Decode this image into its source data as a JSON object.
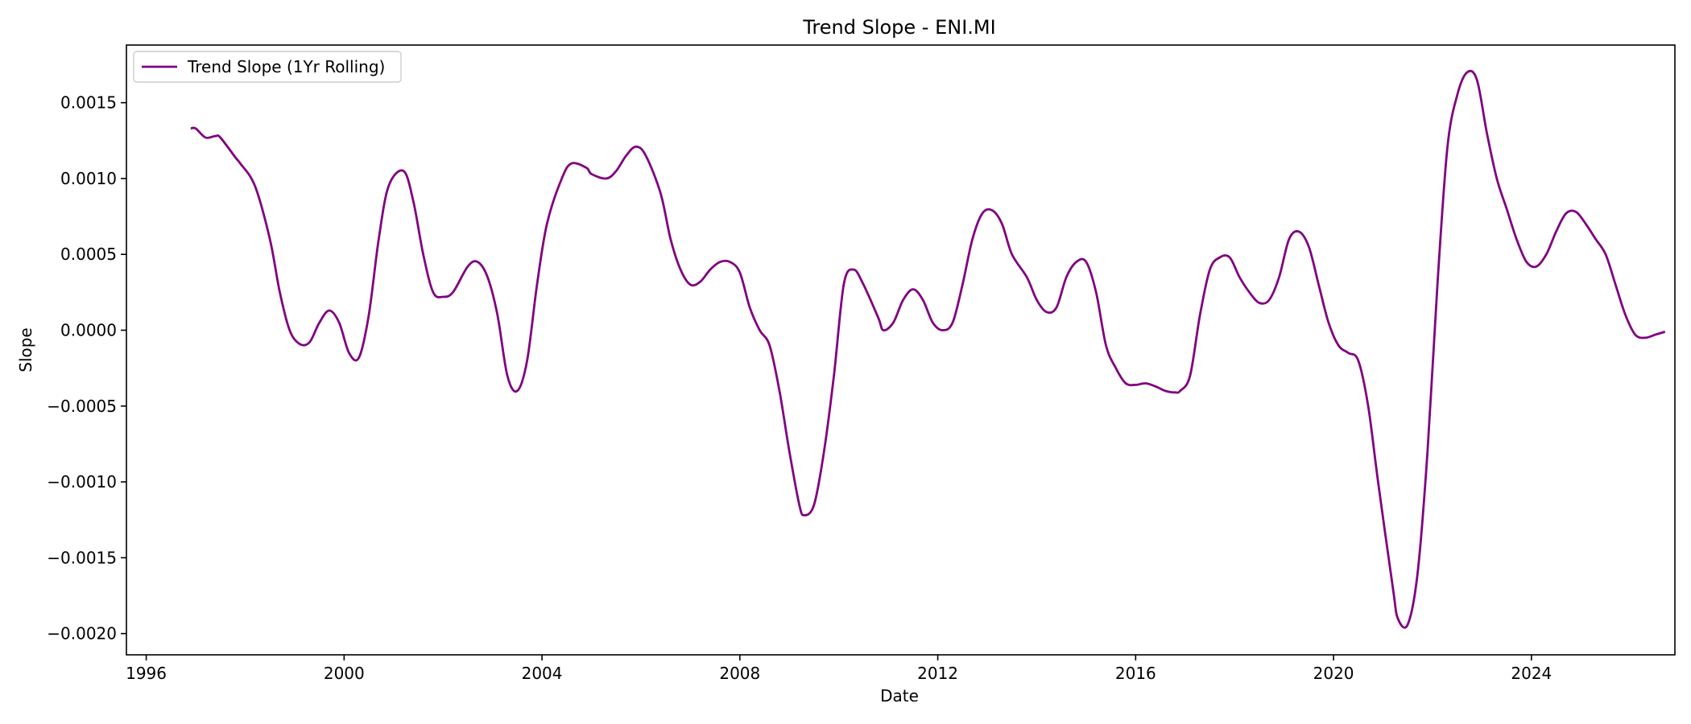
{
  "chart_data": {
    "type": "line",
    "title": "Trend Slope - ENI.MI",
    "xlabel": "Date",
    "ylabel": "Slope",
    "xlim": [
      1995.6,
      2026.9
    ],
    "ylim": [
      -0.00214,
      0.00188
    ],
    "x_ticks": [
      1996,
      2000,
      2004,
      2008,
      2012,
      2016,
      2020,
      2024
    ],
    "x_tick_labels": [
      "1996",
      "2000",
      "2004",
      "2008",
      "2012",
      "2016",
      "2020",
      "2024"
    ],
    "y_ticks": [
      0.0015,
      0.001,
      0.0005,
      0.0,
      -0.0005,
      -0.001,
      -0.0015,
      -0.002
    ],
    "y_tick_labels": [
      "0.0015",
      "0.0010",
      "0.0005",
      "0.0000",
      "−0.0005",
      "−0.0010",
      "−0.0015",
      "−0.0020"
    ],
    "grid": false,
    "legend": {
      "location": "upper left",
      "entries": [
        "Trend Slope (1Yr Rolling)"
      ]
    },
    "series": [
      {
        "name": "Trend Slope (1Yr Rolling)",
        "color": "#800080",
        "points": [
          [
            1996.9,
            0.00133
          ],
          [
            1997.0,
            0.00133
          ],
          [
            1997.2,
            0.00127
          ],
          [
            1997.4,
            0.00128
          ],
          [
            1997.5,
            0.00127
          ],
          [
            1997.8,
            0.00114
          ],
          [
            1997.9,
            0.0011
          ],
          [
            1998.2,
            0.00095
          ],
          [
            1998.5,
            0.0006
          ],
          [
            1998.7,
            0.00025
          ],
          [
            1998.9,
            0.0
          ],
          [
            1999.1,
            -9e-05
          ],
          [
            1999.3,
            -8e-05
          ],
          [
            1999.5,
            5e-05
          ],
          [
            1999.7,
            0.00013
          ],
          [
            1999.9,
            5e-05
          ],
          [
            2000.1,
            -0.00015
          ],
          [
            2000.3,
            -0.00018
          ],
          [
            2000.5,
            0.0001
          ],
          [
            2000.7,
            0.0006
          ],
          [
            2000.9,
            0.00095
          ],
          [
            2001.2,
            0.00105
          ],
          [
            2001.4,
            0.00085
          ],
          [
            2001.6,
            0.0005
          ],
          [
            2001.8,
            0.00025
          ],
          [
            2002.0,
            0.00022
          ],
          [
            2002.2,
            0.00025
          ],
          [
            2002.5,
            0.00042
          ],
          [
            2002.7,
            0.00045
          ],
          [
            2002.9,
            0.00035
          ],
          [
            2003.1,
            0.0001
          ],
          [
            2003.3,
            -0.0003
          ],
          [
            2003.5,
            -0.0004
          ],
          [
            2003.7,
            -0.0002
          ],
          [
            2003.9,
            0.0003
          ],
          [
            2004.1,
            0.0007
          ],
          [
            2004.4,
            0.001
          ],
          [
            2004.6,
            0.0011
          ],
          [
            2004.9,
            0.00107
          ],
          [
            2005.0,
            0.00103
          ],
          [
            2005.3,
            0.001
          ],
          [
            2005.5,
            0.00105
          ],
          [
            2005.7,
            0.00115
          ],
          [
            2005.9,
            0.00121
          ],
          [
            2006.1,
            0.00115
          ],
          [
            2006.4,
            0.0009
          ],
          [
            2006.6,
            0.0006
          ],
          [
            2006.8,
            0.0004
          ],
          [
            2007.0,
            0.0003
          ],
          [
            2007.2,
            0.00032
          ],
          [
            2007.4,
            0.0004
          ],
          [
            2007.6,
            0.00045
          ],
          [
            2007.8,
            0.00045
          ],
          [
            2008.0,
            0.00038
          ],
          [
            2008.2,
            0.00015
          ],
          [
            2008.4,
            0.0
          ],
          [
            2008.6,
            -0.0001
          ],
          [
            2008.8,
            -0.0004
          ],
          [
            2009.0,
            -0.0008
          ],
          [
            2009.2,
            -0.00115
          ],
          [
            2009.3,
            -0.00122
          ],
          [
            2009.5,
            -0.00115
          ],
          [
            2009.7,
            -0.0008
          ],
          [
            2009.9,
            -0.0003
          ],
          [
            2010.1,
            0.0003
          ],
          [
            2010.3,
            0.0004
          ],
          [
            2010.5,
            0.0003
          ],
          [
            2010.8,
            8e-05
          ],
          [
            2010.9,
            0.0
          ],
          [
            2011.1,
            5e-05
          ],
          [
            2011.3,
            0.0002
          ],
          [
            2011.5,
            0.00027
          ],
          [
            2011.7,
            0.0002
          ],
          [
            2011.9,
            5e-05
          ],
          [
            2012.1,
            0.0
          ],
          [
            2012.3,
            5e-05
          ],
          [
            2012.5,
            0.0003
          ],
          [
            2012.7,
            0.0006
          ],
          [
            2012.9,
            0.00077
          ],
          [
            2013.1,
            0.00079
          ],
          [
            2013.3,
            0.0007
          ],
          [
            2013.5,
            0.0005
          ],
          [
            2013.8,
            0.00035
          ],
          [
            2014.0,
            0.0002
          ],
          [
            2014.2,
            0.00012
          ],
          [
            2014.4,
            0.00015
          ],
          [
            2014.6,
            0.00035
          ],
          [
            2014.8,
            0.00045
          ],
          [
            2015.0,
            0.00045
          ],
          [
            2015.2,
            0.00025
          ],
          [
            2015.4,
            -0.0001
          ],
          [
            2015.6,
            -0.00025
          ],
          [
            2015.8,
            -0.00035
          ],
          [
            2016.0,
            -0.00036
          ],
          [
            2016.2,
            -0.00035
          ],
          [
            2016.4,
            -0.00037
          ],
          [
            2016.6,
            -0.0004
          ],
          [
            2016.8,
            -0.00041
          ],
          [
            2016.9,
            -0.0004
          ],
          [
            2017.1,
            -0.0003
          ],
          [
            2017.3,
            0.0001
          ],
          [
            2017.5,
            0.0004
          ],
          [
            2017.7,
            0.00048
          ],
          [
            2017.9,
            0.00048
          ],
          [
            2018.1,
            0.00035
          ],
          [
            2018.3,
            0.00025
          ],
          [
            2018.5,
            0.00018
          ],
          [
            2018.7,
            0.0002
          ],
          [
            2018.9,
            0.00035
          ],
          [
            2019.1,
            0.0006
          ],
          [
            2019.3,
            0.00065
          ],
          [
            2019.5,
            0.00055
          ],
          [
            2019.7,
            0.0003
          ],
          [
            2019.9,
            5e-05
          ],
          [
            2020.1,
            -0.0001
          ],
          [
            2020.3,
            -0.00015
          ],
          [
            2020.5,
            -0.0002
          ],
          [
            2020.7,
            -0.0005
          ],
          [
            2020.9,
            -0.001
          ],
          [
            2021.2,
            -0.0017
          ],
          [
            2021.3,
            -0.0019
          ],
          [
            2021.5,
            -0.00194
          ],
          [
            2021.7,
            -0.0016
          ],
          [
            2021.9,
            -0.0008
          ],
          [
            2022.1,
            0.0003
          ],
          [
            2022.3,
            0.0012
          ],
          [
            2022.5,
            0.00155
          ],
          [
            2022.7,
            0.0017
          ],
          [
            2022.9,
            0.00165
          ],
          [
            2023.1,
            0.0013
          ],
          [
            2023.3,
            0.001
          ],
          [
            2023.5,
            0.0008
          ],
          [
            2023.7,
            0.0006
          ],
          [
            2023.9,
            0.00045
          ],
          [
            2024.1,
            0.00042
          ],
          [
            2024.3,
            0.0005
          ],
          [
            2024.5,
            0.00065
          ],
          [
            2024.7,
            0.00077
          ],
          [
            2024.9,
            0.00078
          ],
          [
            2025.1,
            0.0007
          ],
          [
            2025.3,
            0.0006
          ],
          [
            2025.5,
            0.0005
          ],
          [
            2025.7,
            0.0003
          ],
          [
            2025.9,
            0.0001
          ],
          [
            2026.1,
            -3e-05
          ],
          [
            2026.3,
            -5e-05
          ],
          [
            2026.5,
            -3e-05
          ],
          [
            2026.7,
            -1e-05
          ]
        ]
      }
    ]
  }
}
